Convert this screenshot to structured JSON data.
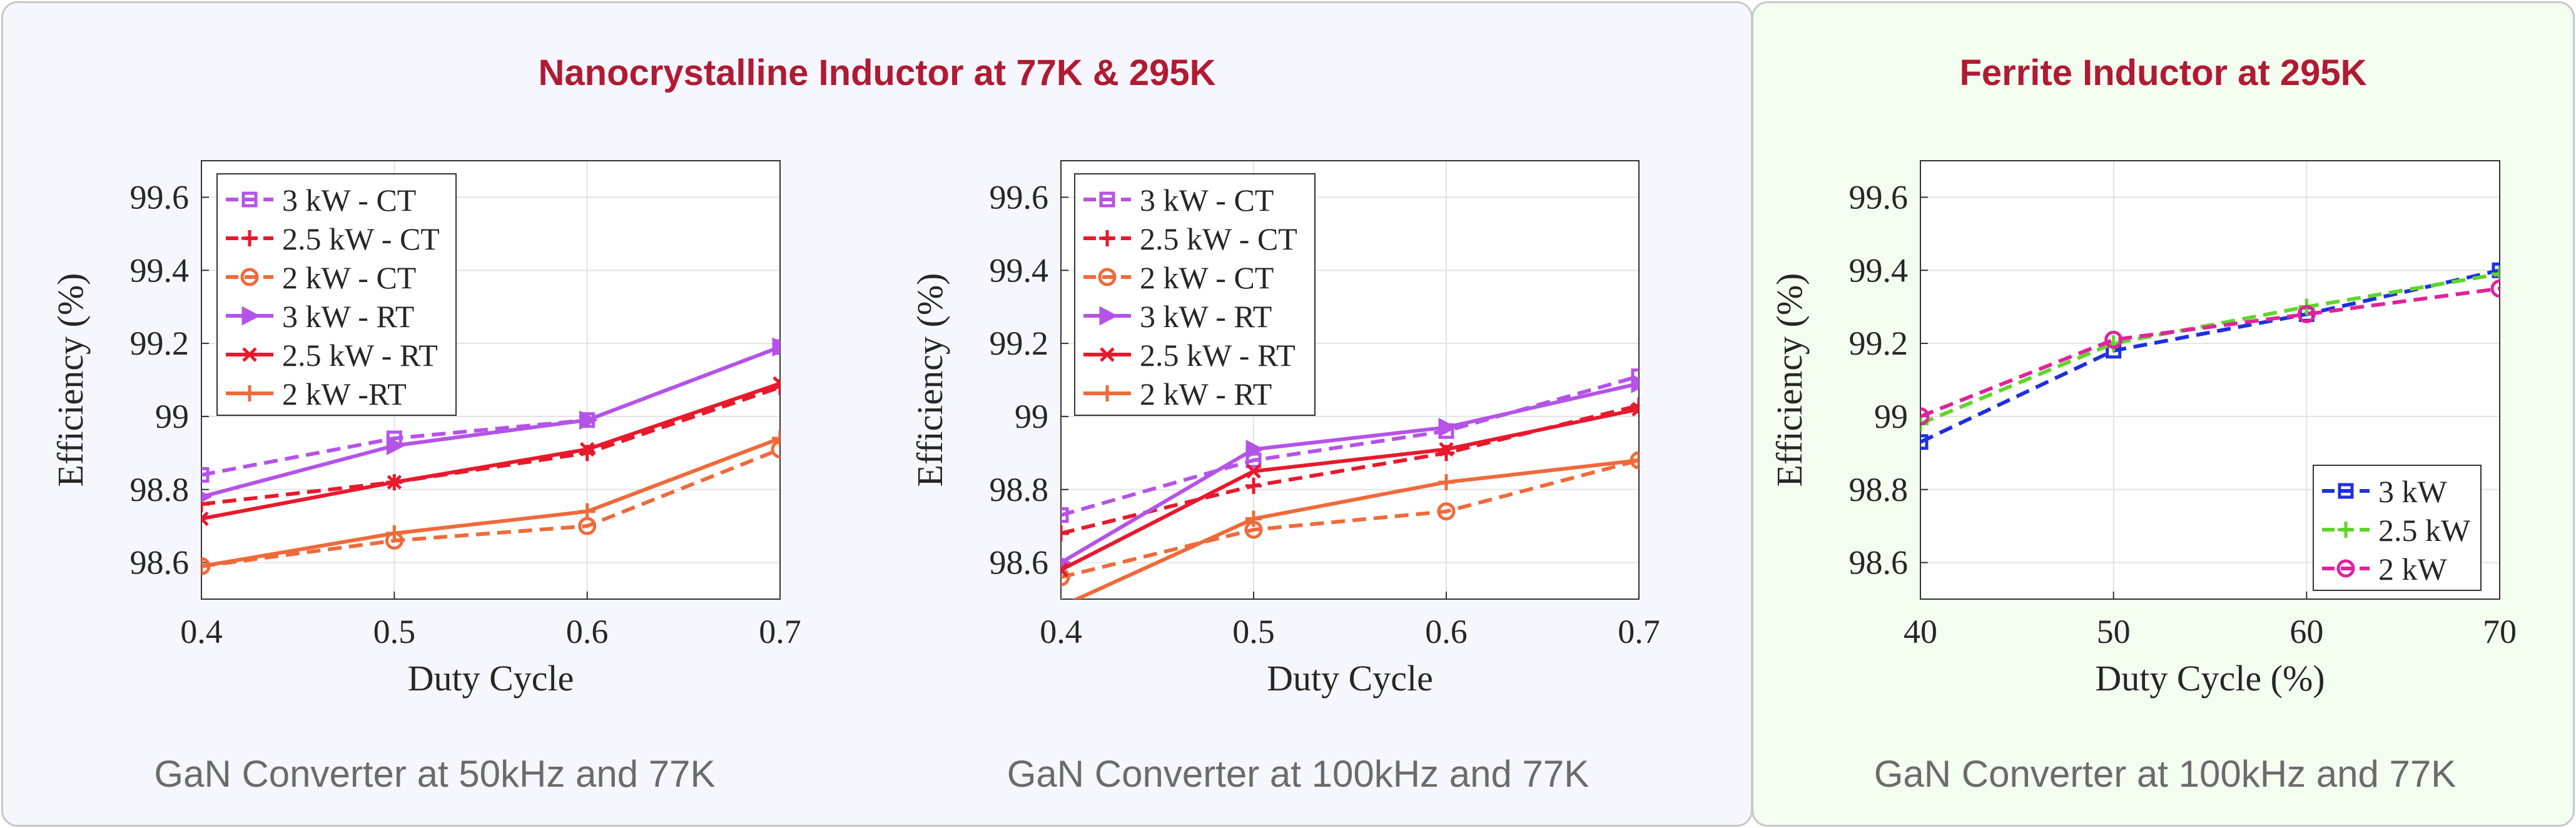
{
  "panels": {
    "left_title": "Nanocrystalline Inductor at 77K & 295K",
    "right_title": "Ferrite Inductor at 295K",
    "caption_1": "GaN Converter at 50kHz and 77K",
    "caption_2": "GaN Converter at 100kHz and 77K",
    "caption_3": "GaN Converter at 100kHz and 77K"
  },
  "chart_data": [
    {
      "type": "line",
      "xlabel": "Duty Cycle",
      "ylabel": "Efficiency (%)",
      "xlim": [
        0.4,
        0.7
      ],
      "ylim": [
        98.5,
        99.7
      ],
      "xticks": [
        "0.4",
        "0.5",
        "0.6",
        "0.7"
      ],
      "yticks": [
        "98.6",
        "98.8",
        "99",
        "99.2",
        "99.4",
        "99.6"
      ],
      "legend_position": "top-left",
      "grid": true,
      "x": [
        0.4,
        0.5,
        0.6,
        0.7
      ],
      "series": [
        {
          "name": "3 kW - CT",
          "values": [
            98.84,
            98.94,
            98.99,
            99.19
          ],
          "color": "#b553e8",
          "dash": true,
          "marker": "square"
        },
        {
          "name": "2.5 kW - CT",
          "values": [
            98.76,
            98.82,
            98.9,
            99.08
          ],
          "color": "#e8192c",
          "dash": true,
          "marker": "plus"
        },
        {
          "name": "2 kW - CT",
          "values": [
            98.59,
            98.66,
            98.7,
            98.91
          ],
          "color": "#ef6a3a",
          "dash": true,
          "marker": "circle"
        },
        {
          "name": "3 kW - RT",
          "values": [
            98.78,
            98.92,
            98.99,
            99.19
          ],
          "color": "#b553e8",
          "dash": false,
          "marker": "triangle-right"
        },
        {
          "name": "2.5 kW - RT",
          "values": [
            98.72,
            98.82,
            98.91,
            99.09
          ],
          "color": "#e8192c",
          "dash": false,
          "marker": "x"
        },
        {
          "name": "2 kW -RT",
          "values": [
            98.59,
            98.68,
            98.74,
            98.94
          ],
          "color": "#ef6a3a",
          "dash": false,
          "marker": "plus"
        }
      ]
    },
    {
      "type": "line",
      "xlabel": "Duty Cycle",
      "ylabel": "Efficiency (%)",
      "xlim": [
        0.4,
        0.7
      ],
      "ylim": [
        98.5,
        99.7
      ],
      "xticks": [
        "0.4",
        "0.5",
        "0.6",
        "0.7"
      ],
      "yticks": [
        "98.6",
        "98.8",
        "99",
        "99.2",
        "99.4",
        "99.6"
      ],
      "legend_position": "top-left",
      "grid": true,
      "x": [
        0.4,
        0.5,
        0.6,
        0.7
      ],
      "series": [
        {
          "name": "3 kW - CT",
          "values": [
            98.73,
            98.88,
            98.96,
            99.11
          ],
          "color": "#b553e8",
          "dash": true,
          "marker": "square"
        },
        {
          "name": "2.5 kW - CT",
          "values": [
            98.68,
            98.81,
            98.9,
            99.03
          ],
          "color": "#e8192c",
          "dash": true,
          "marker": "plus"
        },
        {
          "name": "2 kW - CT",
          "values": [
            98.56,
            98.69,
            98.74,
            98.88
          ],
          "color": "#ef6a3a",
          "dash": true,
          "marker": "circle"
        },
        {
          "name": "3 kW - RT",
          "values": [
            98.6,
            98.91,
            98.97,
            99.09
          ],
          "color": "#b553e8",
          "dash": false,
          "marker": "triangle-right"
        },
        {
          "name": "2.5 kW - RT",
          "values": [
            98.58,
            98.85,
            98.91,
            99.02
          ],
          "color": "#e8192c",
          "dash": false,
          "marker": "x"
        },
        {
          "name": "2 kW - RT",
          "values": [
            98.48,
            98.72,
            98.82,
            98.88
          ],
          "color": "#ef6a3a",
          "dash": false,
          "marker": "plus"
        }
      ]
    },
    {
      "type": "line",
      "xlabel": "Duty Cycle (%)",
      "ylabel": "Efficiency (%)",
      "xlim": [
        40,
        70
      ],
      "ylim": [
        98.5,
        99.7
      ],
      "xticks": [
        "40",
        "50",
        "60",
        "70"
      ],
      "yticks": [
        "98.6",
        "98.8",
        "99",
        "99.2",
        "99.4",
        "99.6"
      ],
      "legend_position": "bottom-right",
      "grid": true,
      "x": [
        40,
        50,
        60,
        70
      ],
      "series": [
        {
          "name": "3 kW",
          "values": [
            98.93,
            99.18,
            99.28,
            99.4
          ],
          "color": "#1f2fe0",
          "dash": true,
          "marker": "square"
        },
        {
          "name": "2.5 kW",
          "values": [
            98.98,
            99.2,
            99.3,
            99.39
          ],
          "color": "#5fd62a",
          "dash": true,
          "marker": "plus"
        },
        {
          "name": "2 kW",
          "values": [
            99.0,
            99.21,
            99.28,
            99.35
          ],
          "color": "#e0239c",
          "dash": true,
          "marker": "circle"
        }
      ]
    }
  ]
}
